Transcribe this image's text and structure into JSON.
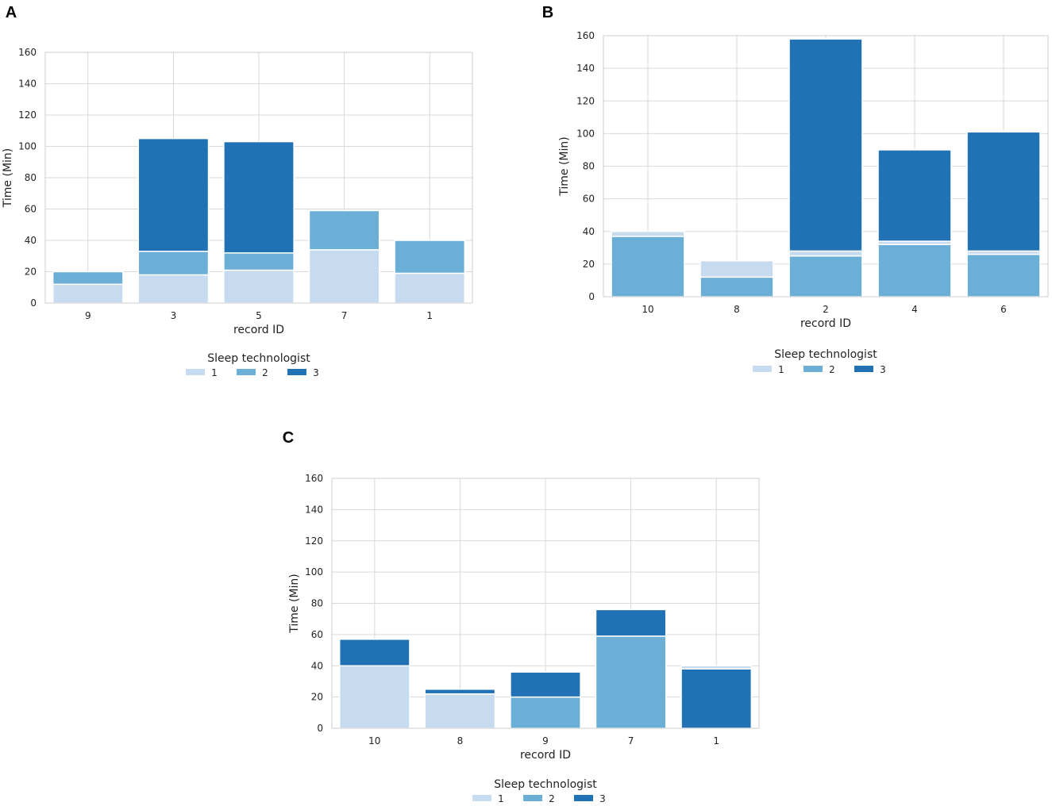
{
  "chart_data": [
    {
      "panel": "A",
      "type": "bar",
      "stacked": true,
      "title": "",
      "xlabel": "record ID",
      "ylabel": "Time (Min)",
      "ylim": [
        0,
        160
      ],
      "yticks": [
        0,
        20,
        40,
        60,
        80,
        100,
        120,
        140,
        160
      ],
      "grid": true,
      "categories": [
        "9",
        "3",
        "5",
        "7",
        "1"
      ],
      "series": [
        {
          "name": "1",
          "color": "#c6dbef",
          "values": [
            12,
            18,
            21,
            34,
            19
          ]
        },
        {
          "name": "2",
          "color": "#6baed6",
          "values": [
            8,
            15,
            11,
            25,
            21
          ]
        },
        {
          "name": "3",
          "color": "#2171b5",
          "values": [
            0,
            72,
            71,
            0,
            0
          ]
        }
      ],
      "legend": {
        "title": "Sleep technologist",
        "placement": "bottom"
      }
    },
    {
      "panel": "B",
      "type": "bar",
      "stacked": true,
      "title": "",
      "xlabel": "record ID",
      "ylabel": "Time (Min)",
      "ylim": [
        0,
        160
      ],
      "yticks": [
        0,
        20,
        40,
        60,
        80,
        100,
        120,
        140,
        160
      ],
      "grid": true,
      "categories": [
        "10",
        "8",
        "2",
        "4",
        "6"
      ],
      "series": [
        {
          "name": "1",
          "color": "#c6dbef",
          "values": [
            3,
            10,
            3,
            2,
            2
          ]
        },
        {
          "name": "2",
          "color": "#6baed6",
          "values": [
            37,
            12,
            25,
            32,
            26
          ]
        },
        {
          "name": "3",
          "color": "#2171b5",
          "values": [
            0,
            0,
            130,
            56,
            73
          ]
        }
      ],
      "segment_order": [
        [
          "2",
          "1",
          "3"
        ],
        [
          "2",
          "1",
          "3"
        ],
        [
          "2",
          "1",
          "3"
        ],
        [
          "2",
          "1",
          "3"
        ],
        [
          "2",
          "1",
          "3"
        ]
      ],
      "legend": {
        "title": "Sleep technologist",
        "placement": "bottom"
      }
    },
    {
      "panel": "C",
      "type": "bar",
      "stacked": true,
      "title": "",
      "xlabel": "record ID",
      "ylabel": "Time (Min)",
      "ylim": [
        0,
        160
      ],
      "yticks": [
        0,
        20,
        40,
        60,
        80,
        100,
        120,
        140,
        160
      ],
      "grid": true,
      "categories": [
        "10",
        "8",
        "9",
        "7",
        "1"
      ],
      "series": [
        {
          "name": "1",
          "color": "#c6dbef",
          "values": [
            40,
            22,
            0,
            0,
            2
          ]
        },
        {
          "name": "2",
          "color": "#6baed6",
          "values": [
            0,
            0,
            20,
            59,
            0
          ]
        },
        {
          "name": "3",
          "color": "#2171b5",
          "values": [
            17,
            3,
            16,
            17,
            38
          ]
        }
      ],
      "segment_order": [
        [
          "1",
          "2",
          "3"
        ],
        [
          "1",
          "2",
          "3"
        ],
        [
          "1",
          "2",
          "3"
        ],
        [
          "1",
          "2",
          "3"
        ],
        [
          "3",
          "1",
          "2"
        ]
      ],
      "legend": {
        "title": "Sleep technologist",
        "placement": "bottom"
      }
    }
  ]
}
